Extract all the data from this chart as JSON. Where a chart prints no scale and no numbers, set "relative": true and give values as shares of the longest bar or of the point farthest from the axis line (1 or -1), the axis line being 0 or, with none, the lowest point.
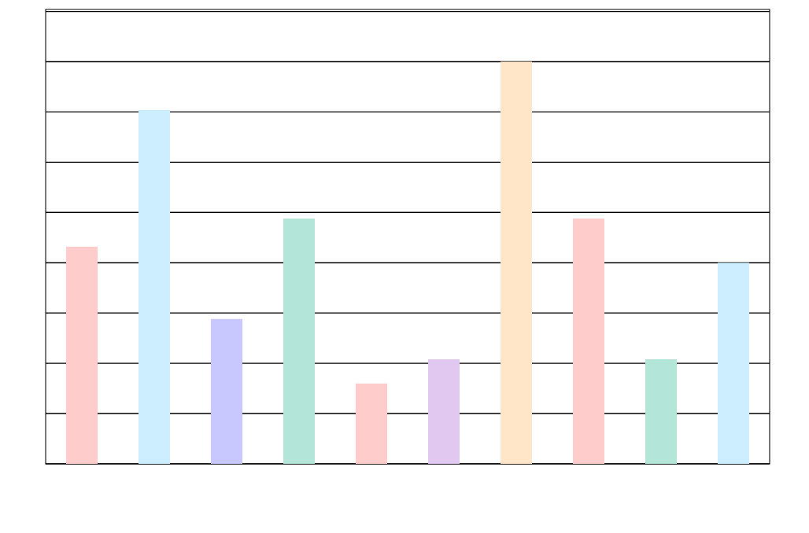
{
  "chart_data": {
    "type": "bar",
    "relative": true,
    "grid": "y",
    "categories": [
      null,
      null,
      null,
      null,
      null,
      null,
      null,
      null,
      null,
      null
    ],
    "values": [
      0.54,
      0.88,
      0.36,
      0.61,
      0.2,
      0.26,
      1,
      0.61,
      0.26,
      0.5
    ],
    "colors": [
      "#ffcccc",
      "#cceeff",
      "#c8c8ff",
      "#b3e6d9",
      "#ffcccc",
      "#e0c8f0",
      "#ffe6c8",
      "#ffcccc",
      "#b3e6d9",
      "#cceeff"
    ]
  }
}
